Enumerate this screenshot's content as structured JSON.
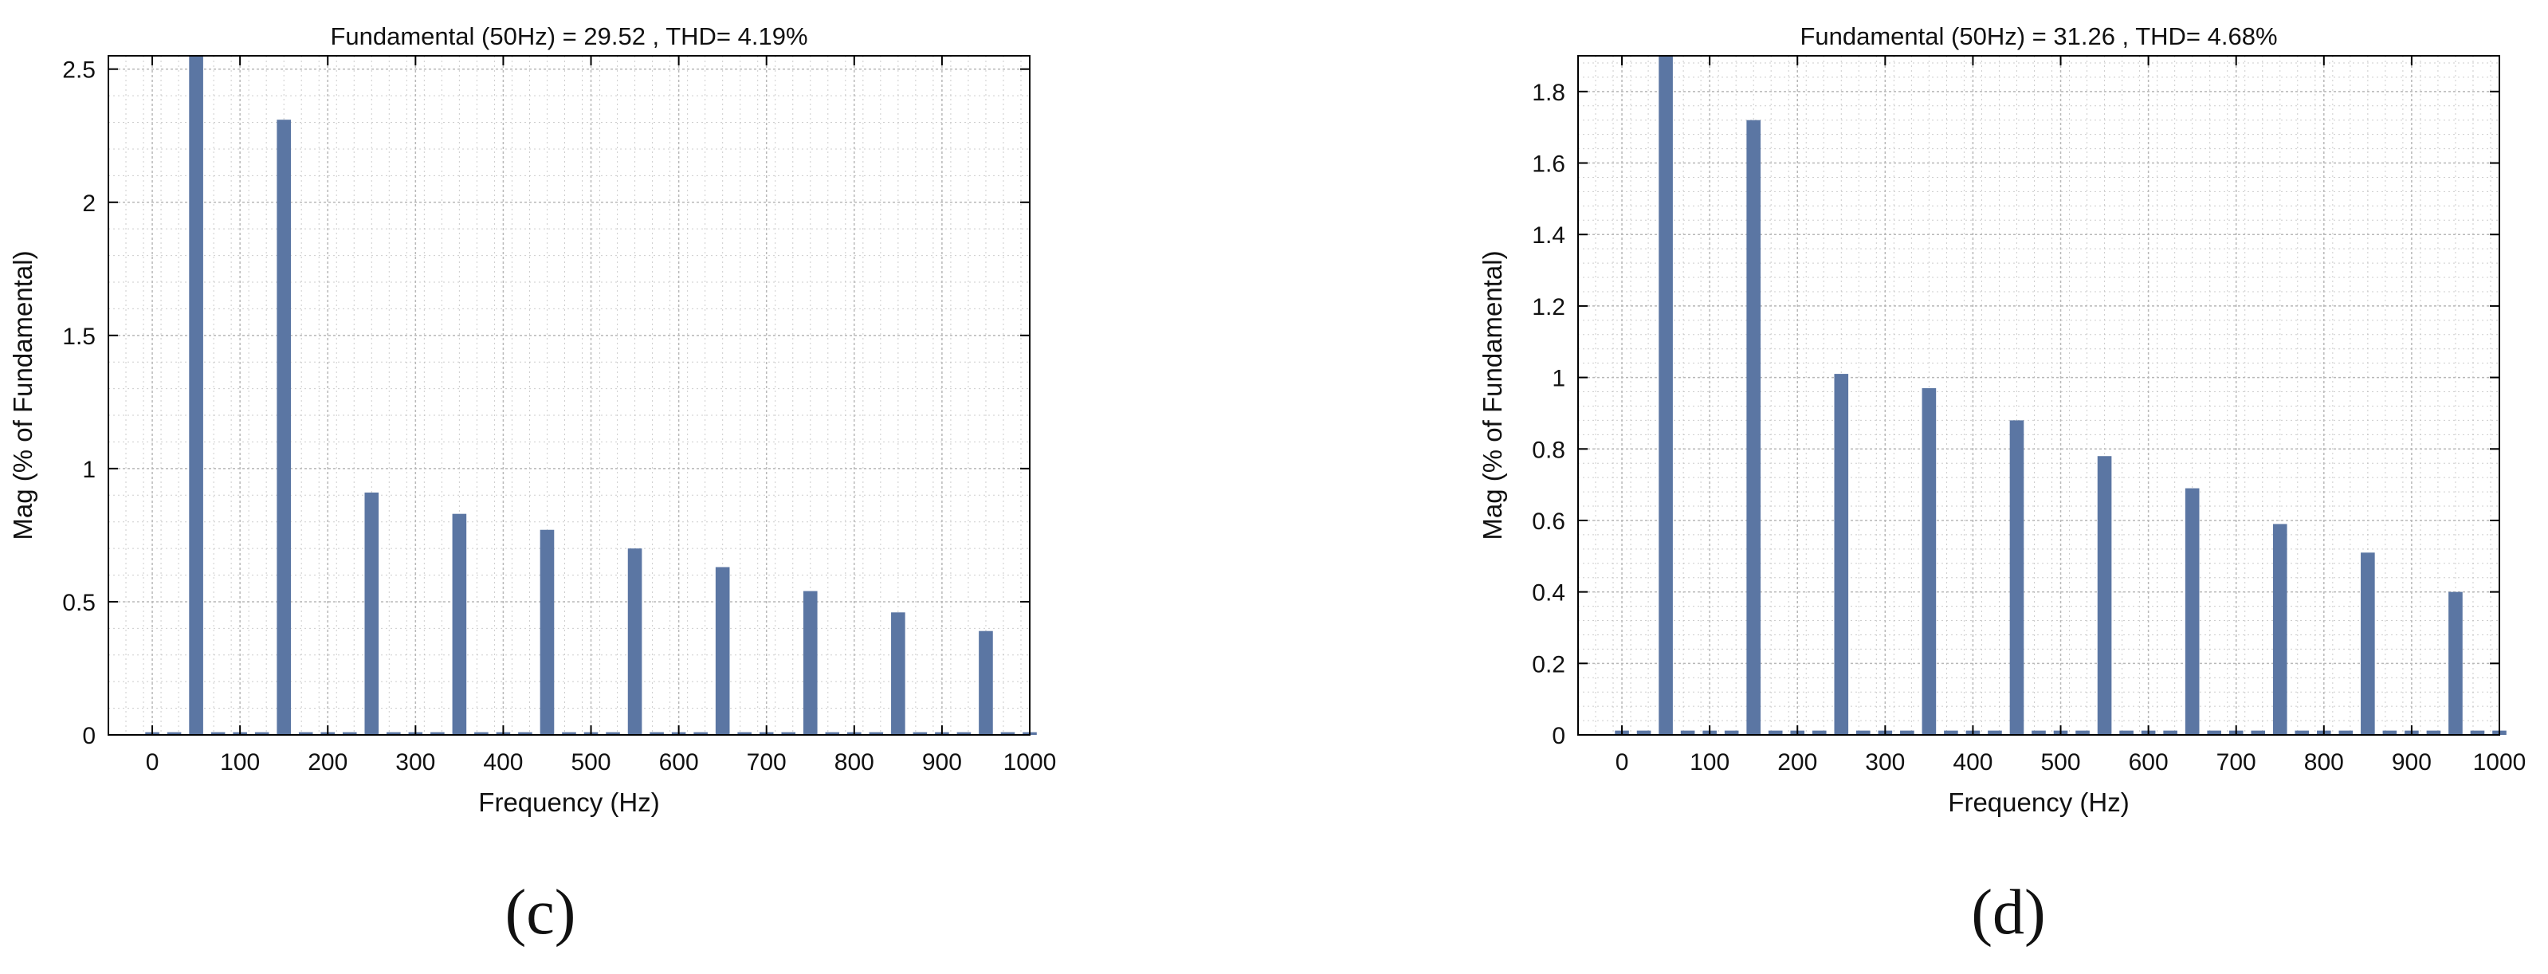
{
  "colors": {
    "bar": "#5b76a3",
    "axis": "#000000",
    "grid": "#b8b8b8",
    "text": "#111111"
  },
  "chart_data": [
    {
      "type": "bar",
      "panel_label": "(c)",
      "title": "Fundamental (50Hz) = 29.52 , THD= 4.19%",
      "xlabel": "Frequency (Hz)",
      "ylabel": "Mag (% of Fundamental)",
      "xlim": [
        -50,
        1000
      ],
      "ylim": [
        0,
        2.55
      ],
      "xticks": [
        0,
        100,
        200,
        300,
        400,
        500,
        600,
        700,
        800,
        900,
        1000
      ],
      "yticks": [
        0,
        0.5,
        1,
        1.5,
        2,
        2.5
      ],
      "ytick_labels": [
        "0",
        "0.5",
        "1",
        "1.5",
        "2",
        "2.5"
      ],
      "grid": true,
      "minor_grid": true,
      "bar_width_hz": 16,
      "x": [
        50,
        150,
        250,
        350,
        450,
        550,
        650,
        750,
        850,
        950
      ],
      "values": [
        2.55,
        2.31,
        0.91,
        0.83,
        0.77,
        0.7,
        0.63,
        0.54,
        0.46,
        0.39
      ],
      "baseline_noise": 0.01
    },
    {
      "type": "bar",
      "panel_label": "(d)",
      "title": "Fundamental (50Hz) = 31.26 , THD= 4.68%",
      "xlabel": "Frequency (Hz)",
      "ylabel": "Mag (% of Fundamental)",
      "xlim": [
        -50,
        1000
      ],
      "ylim": [
        0,
        1.9
      ],
      "xticks": [
        0,
        100,
        200,
        300,
        400,
        500,
        600,
        700,
        800,
        900,
        1000
      ],
      "yticks": [
        0,
        0.2,
        0.4,
        0.6,
        0.8,
        1,
        1.2,
        1.4,
        1.6,
        1.8
      ],
      "ytick_labels": [
        "0",
        "0.2",
        "0.4",
        "0.6",
        "0.8",
        "1",
        "1.2",
        "1.4",
        "1.6",
        "1.8"
      ],
      "grid": true,
      "minor_grid": true,
      "bar_width_hz": 16,
      "x": [
        50,
        150,
        250,
        350,
        450,
        550,
        650,
        750,
        850,
        950
      ],
      "values": [
        1.9,
        1.72,
        1.01,
        0.97,
        0.88,
        0.78,
        0.69,
        0.59,
        0.51,
        0.4
      ],
      "baseline_noise": 0.012
    }
  ]
}
